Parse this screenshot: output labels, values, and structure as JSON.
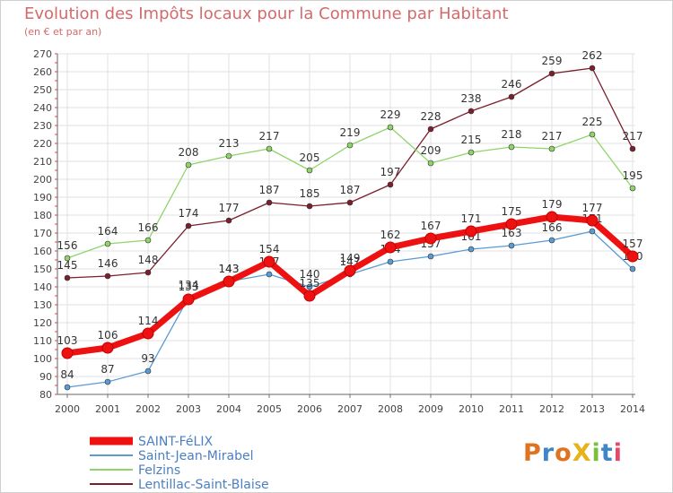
{
  "header": {
    "title": "Evolution des Impôts locaux pour la Commune par Habitant",
    "subtitle": "(en € et par an)"
  },
  "logo": {
    "text": "ProXiti",
    "colors": [
      "#e0731f",
      "#3f86c8",
      "#e0731f",
      "#e8b21b",
      "#7cbf3a",
      "#3f86c8",
      "#e34a6a"
    ]
  },
  "chart_data": {
    "type": "line",
    "title": "Evolution des Impôts locaux pour la Commune par Habitant",
    "subtitle": "(en € et par an)",
    "xlabel": "",
    "ylabel": "",
    "x": [
      "2000",
      "2001",
      "2002",
      "2003",
      "2004",
      "2005",
      "2006",
      "2007",
      "2008",
      "2009",
      "2010",
      "2011",
      "2012",
      "2013",
      "2014"
    ],
    "ylim": [
      80,
      270
    ],
    "yticks": [
      80,
      90,
      100,
      110,
      120,
      130,
      140,
      150,
      160,
      170,
      180,
      190,
      200,
      210,
      220,
      230,
      240,
      250,
      260,
      270
    ],
    "grid": true,
    "legend": "bottom-left",
    "series": [
      {
        "name": "Lentillac-Saint-Blaise",
        "color": "#7a1f2b",
        "values": [
          145,
          146,
          148,
          174,
          177,
          187,
          185,
          187,
          197,
          228,
          238,
          246,
          259,
          262,
          217
        ],
        "labels": [
          "145",
          "146",
          "148",
          "174",
          "177",
          "187",
          "185",
          "187",
          "197",
          "228",
          "238",
          "246",
          "259",
          "262",
          "217"
        ]
      },
      {
        "name": "Felzins",
        "color": "#8fd46a",
        "values": [
          156,
          164,
          166,
          208,
          213,
          217,
          205,
          219,
          229,
          209,
          215,
          218,
          217,
          225,
          195
        ],
        "labels": [
          "156",
          "164",
          "166",
          "208",
          "213",
          "217",
          "205",
          "219",
          "229",
          "209",
          "215",
          "218",
          "217",
          "225",
          "195"
        ]
      },
      {
        "name": "Saint-Jean-Mirabel",
        "color": "#5b9bd5",
        "values": [
          84,
          87,
          93,
          134,
          143,
          147,
          140,
          147,
          154,
          157,
          161,
          163,
          166,
          171,
          150
        ],
        "labels": [
          "84",
          "87",
          "93",
          "134",
          "143",
          "147",
          "140",
          "147",
          "154",
          "157",
          "161",
          "163",
          "166",
          "171",
          "150"
        ]
      },
      {
        "name": "SAINT-FéLIX",
        "color": "#ee1111",
        "values": [
          103,
          106,
          114,
          133,
          143,
          154,
          135,
          149,
          162,
          167,
          171,
          175,
          179,
          177,
          157
        ],
        "labels": [
          "103",
          "106",
          "114",
          "133",
          "143",
          "154",
          "135",
          "149",
          "162",
          "167",
          "171",
          "175",
          "179",
          "177",
          "157"
        ]
      }
    ]
  }
}
